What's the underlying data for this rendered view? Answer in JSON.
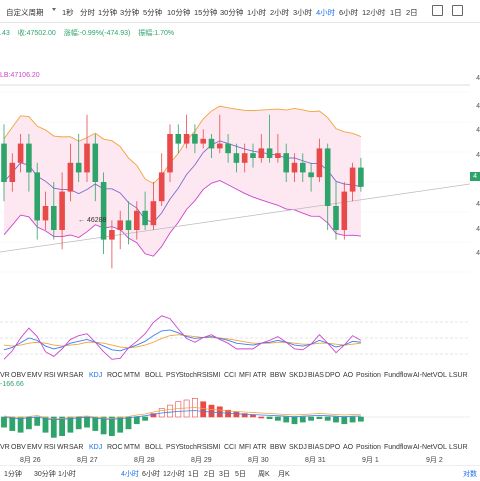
{
  "toolbar": {
    "items": [
      "自定义周期",
      "1秒",
      "分时",
      "1分钟",
      "3分钟",
      "5分钟",
      "10分钟",
      "15分钟",
      "30分钟",
      "1小时",
      "2小时",
      "3小时",
      "4小时",
      "6小时",
      "12小时",
      "1日",
      "2日"
    ],
    "active": "4小时"
  },
  "price_info": {
    "open_partial": ".43",
    "close": "收:47502.00",
    "change": "涨幅:-0.99%(-474.93)",
    "amplitude": "振幅:1.70%"
  },
  "boll_label": "LB:47106.20",
  "low_marker": "46288",
  "indicator_tabs_1": [
    "VR",
    "OBV",
    "EMV",
    "RSI",
    "WR",
    "SAR",
    "KDJ",
    "ROC",
    "MTM",
    "BOLL",
    "PSY",
    "StochRSI",
    "SMI",
    "CCI",
    "MFI",
    "ATR",
    "BBW",
    "SKDJ",
    "BIAS",
    "DPO",
    "AO",
    "Position",
    "Fundflow",
    "AI-NetVOL",
    "LSUR"
  ],
  "indicator_tabs_2": [
    "VR",
    "OBV",
    "EMV",
    "RSI",
    "WR",
    "SAR",
    "KDJ",
    "ROC",
    "MTM",
    "BOLL",
    "PSY",
    "StochRSI",
    "SMI",
    "CCI",
    "MFI",
    "ATR",
    "BBW",
    "SKDJ",
    "BIAS",
    "DPO",
    "AO",
    "Position",
    "Fundflow",
    "AI-NetVOL",
    "LSUR"
  ],
  "selected_indicator": "KDJ",
  "macd_value": "-166.66",
  "price_axis": [
    "4",
    "4",
    "4",
    "4",
    "4",
    "4",
    "4"
  ],
  "last_price_tag": "4",
  "date_labels": [
    "8月 26",
    "8月 27",
    "8月 28",
    "8月 29",
    "8月 30",
    "8月 31",
    "9月 1",
    "9月 2"
  ],
  "period_buttons": [
    "1分钟",
    "30分钟",
    "1小时",
    "4小时",
    "6小时",
    "12小时",
    "1日",
    "2日",
    "3日",
    "5日",
    "周K",
    "月K"
  ],
  "period_active": "4小时",
  "right_bottom_label": "对数",
  "colors": {
    "up": "#e84a4a",
    "down": "#2ea36a",
    "boll_upper": "#f2a33a",
    "boll_lower": "#cc44cc",
    "boll_fill": "#fde8f2",
    "accent": "#1e6ef0"
  },
  "chart_data": {
    "type": "candlestick",
    "candles": [
      {
        "o": 4.78,
        "c": 4.7,
        "h": 4.82,
        "l": 4.66
      },
      {
        "o": 4.7,
        "c": 4.74,
        "h": 4.76,
        "l": 4.68
      },
      {
        "o": 4.74,
        "c": 4.78,
        "h": 4.8,
        "l": 4.72
      },
      {
        "o": 4.78,
        "c": 4.72,
        "h": 4.8,
        "l": 4.68
      },
      {
        "o": 4.72,
        "c": 4.62,
        "h": 4.74,
        "l": 4.58
      },
      {
        "o": 4.62,
        "c": 4.65,
        "h": 4.68,
        "l": 4.6
      },
      {
        "o": 4.65,
        "c": 4.6,
        "h": 4.7,
        "l": 4.58
      },
      {
        "o": 4.6,
        "c": 4.68,
        "h": 4.72,
        "l": 4.56
      },
      {
        "o": 4.68,
        "c": 4.74,
        "h": 4.78,
        "l": 4.66
      },
      {
        "o": 4.74,
        "c": 4.72,
        "h": 4.8,
        "l": 4.7
      },
      {
        "o": 4.72,
        "c": 4.78,
        "h": 4.84,
        "l": 4.7
      },
      {
        "o": 4.78,
        "c": 4.7,
        "h": 4.8,
        "l": 4.66
      },
      {
        "o": 4.7,
        "c": 4.58,
        "h": 4.72,
        "l": 4.55
      },
      {
        "o": 4.58,
        "c": 4.6,
        "h": 4.62,
        "l": 4.52
      },
      {
        "o": 4.6,
        "c": 4.62,
        "h": 4.64,
        "l": 4.56
      },
      {
        "o": 4.62,
        "c": 4.6,
        "h": 4.66,
        "l": 4.57
      },
      {
        "o": 4.6,
        "c": 4.64,
        "h": 4.66,
        "l": 4.58
      },
      {
        "o": 4.64,
        "c": 4.61,
        "h": 4.68,
        "l": 4.6
      },
      {
        "o": 4.61,
        "c": 4.66,
        "h": 4.7,
        "l": 4.6
      },
      {
        "o": 4.66,
        "c": 4.72,
        "h": 4.76,
        "l": 4.65
      },
      {
        "o": 4.72,
        "c": 4.8,
        "h": 4.82,
        "l": 4.7
      },
      {
        "o": 4.8,
        "c": 4.78,
        "h": 4.82,
        "l": 4.76
      },
      {
        "o": 4.78,
        "c": 4.8,
        "h": 4.84,
        "l": 4.77
      },
      {
        "o": 4.8,
        "c": 4.78,
        "h": 4.82,
        "l": 4.76
      },
      {
        "o": 4.78,
        "c": 4.79,
        "h": 4.81,
        "l": 4.77
      },
      {
        "o": 4.79,
        "c": 4.77,
        "h": 4.8,
        "l": 4.75
      },
      {
        "o": 4.77,
        "c": 4.78,
        "h": 4.84,
        "l": 4.76
      },
      {
        "o": 4.78,
        "c": 4.76,
        "h": 4.8,
        "l": 4.74
      },
      {
        "o": 4.76,
        "c": 4.74,
        "h": 4.78,
        "l": 4.72
      },
      {
        "o": 4.74,
        "c": 4.76,
        "h": 4.78,
        "l": 4.72
      },
      {
        "o": 4.76,
        "c": 4.75,
        "h": 4.78,
        "l": 4.73
      },
      {
        "o": 4.75,
        "c": 4.77,
        "h": 4.8,
        "l": 4.74
      },
      {
        "o": 4.77,
        "c": 4.75,
        "h": 4.84,
        "l": 4.74
      },
      {
        "o": 4.75,
        "c": 4.76,
        "h": 4.8,
        "l": 4.74
      },
      {
        "o": 4.76,
        "c": 4.72,
        "h": 4.78,
        "l": 4.7
      },
      {
        "o": 4.72,
        "c": 4.74,
        "h": 4.76,
        "l": 4.7
      },
      {
        "o": 4.74,
        "c": 4.72,
        "h": 4.76,
        "l": 4.7
      },
      {
        "o": 4.72,
        "c": 4.71,
        "h": 4.74,
        "l": 4.68
      },
      {
        "o": 4.71,
        "c": 4.77,
        "h": 4.79,
        "l": 4.7
      },
      {
        "o": 4.77,
        "c": 4.65,
        "h": 4.78,
        "l": 4.6
      },
      {
        "o": 4.65,
        "c": 4.6,
        "h": 4.7,
        "l": 4.58
      },
      {
        "o": 4.6,
        "c": 4.68,
        "h": 4.7,
        "l": 4.58
      },
      {
        "o": 4.68,
        "c": 4.73,
        "h": 4.74,
        "l": 4.66
      },
      {
        "o": 4.73,
        "c": 4.69,
        "h": 4.75,
        "l": 4.68
      }
    ],
    "kdj": {
      "k": [
        30,
        35,
        45,
        55,
        50,
        38,
        32,
        36,
        44,
        48,
        52,
        46,
        38,
        30,
        28,
        34,
        40,
        48,
        60,
        70,
        72,
        66,
        58,
        54,
        56,
        58,
        54,
        50,
        44,
        42,
        40,
        44,
        46,
        50,
        46,
        40,
        38,
        42,
        50,
        44,
        36,
        40,
        48,
        46
      ],
      "d": [
        40,
        38,
        40,
        44,
        46,
        44,
        40,
        38,
        40,
        42,
        46,
        46,
        44,
        40,
        36,
        34,
        36,
        40,
        46,
        54,
        60,
        62,
        60,
        58,
        56,
        56,
        55,
        53,
        50,
        47,
        44,
        44,
        44,
        46,
        46,
        44,
        42,
        42,
        44,
        44,
        42,
        40,
        42,
        44
      ],
      "j": [
        10,
        28,
        55,
        76,
        58,
        26,
        16,
        32,
        52,
        60,
        64,
        46,
        26,
        10,
        12,
        34,
        48,
        64,
        88,
        102,
        96,
        74,
        54,
        46,
        56,
        62,
        52,
        44,
        32,
        32,
        32,
        44,
        50,
        58,
        46,
        32,
        30,
        42,
        62,
        44,
        24,
        40,
        60,
        50
      ]
    },
    "macd": [
      -60,
      -80,
      -90,
      -70,
      -50,
      -90,
      -120,
      -110,
      -90,
      -70,
      -60,
      -80,
      -100,
      -110,
      -90,
      -70,
      -40,
      -20,
      20,
      50,
      70,
      90,
      100,
      110,
      90,
      70,
      60,
      40,
      30,
      20,
      10,
      0,
      -10,
      -20,
      -30,
      -40,
      -30,
      -20,
      -10,
      -20,
      -30,
      -40,
      -30,
      -25
    ]
  }
}
